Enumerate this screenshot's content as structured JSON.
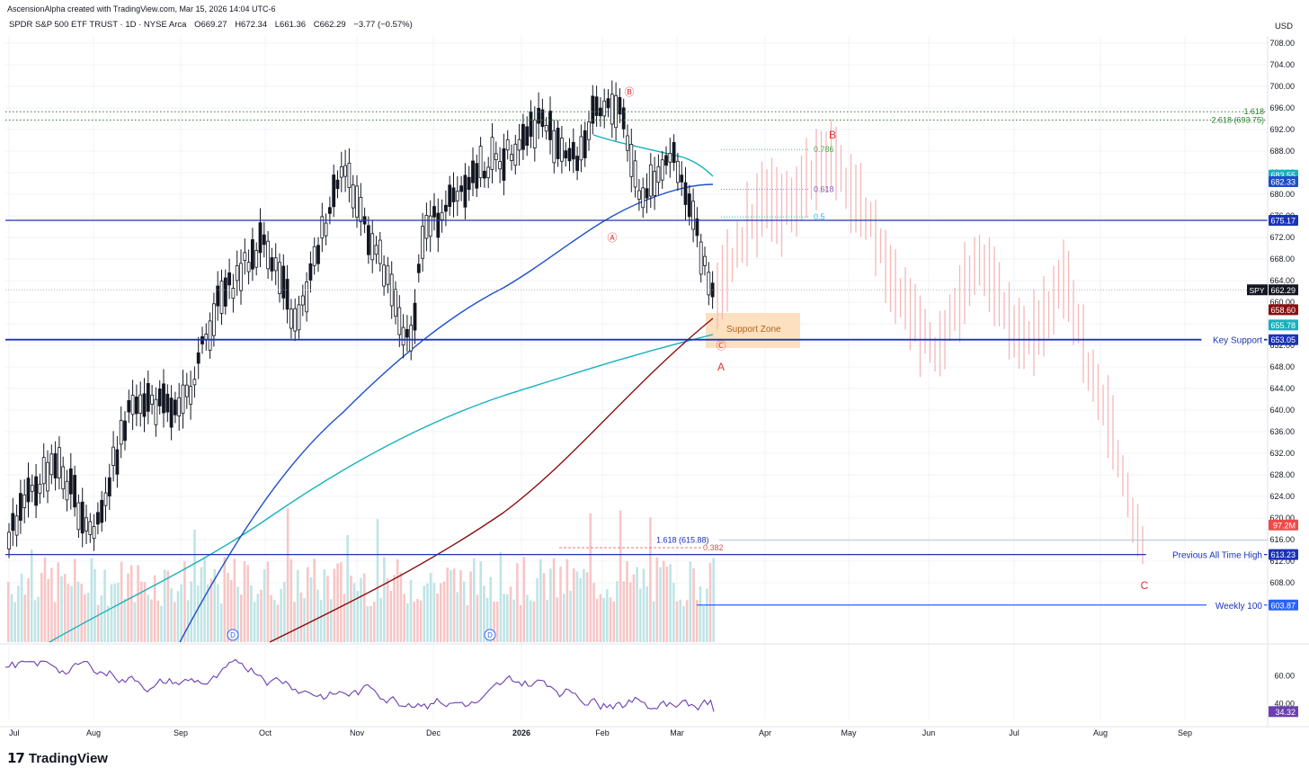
{
  "header": {
    "credit": "AscensionAlpha created with TradingView.com, Mar 15, 2026 14:04 UTC-6",
    "symbol": "SPDR S&P 500 ETF TRUST · 1D · NYSE Arca",
    "ohlc": {
      "open": "O669.27",
      "high": "H672.34",
      "low": "L661.36",
      "close": "C662.29",
      "change": "−3.77 (−0.57%)"
    },
    "currency": "USD"
  },
  "branding": {
    "name": "TradingView",
    "logo_icon": "tradingview-logo-icon"
  },
  "colors": {
    "up": "#131722",
    "down": "#131722",
    "projection": "#f5b7b7",
    "ema_blue": "#1e4fc9",
    "ema_cyan": "#16b1bd",
    "ema_red": "#8b1010",
    "level": "#1a33b8",
    "rsi": "#6b3fb0",
    "vol_up": "#bfe4e6",
    "vol_down": "#f7c6c6",
    "support_zone": "#fde0bf",
    "wave_label": "#e03434"
  },
  "chart_data": {
    "type": "candlestick",
    "price_axis": {
      "min": 604,
      "max": 709,
      "ticks": [
        608,
        612,
        616,
        620,
        624,
        628,
        632,
        636,
        640,
        644,
        648,
        652,
        656,
        660,
        664,
        668,
        672,
        676,
        680,
        684,
        688,
        692,
        696,
        700,
        704,
        708
      ]
    },
    "time_axis": [
      "Jul",
      "Aug",
      "Sep",
      "Oct",
      "Nov",
      "Dec",
      "2026",
      "Feb",
      "Mar",
      "Apr",
      "May",
      "Jun",
      "Jul",
      "Aug",
      "Sep"
    ],
    "last_price": {
      "symbol": "SPY",
      "value": "662.29"
    },
    "price_badges": [
      {
        "value": "683.55",
        "color": "#16b1bd"
      },
      {
        "value": "682.33",
        "color": "#1e4fc9"
      },
      {
        "value": "675.17",
        "color": "#1a33b8"
      },
      {
        "value": "658.60",
        "color": "#8b1010"
      },
      {
        "value": "655.78",
        "color": "#16b1bd"
      },
      {
        "value": "653.05",
        "color": "#1a33b8"
      },
      {
        "value": "97.2M",
        "color": "#f04a4a"
      },
      {
        "value": "613.23",
        "color": "#1a33b8"
      },
      {
        "value": "603.87",
        "color": "#2962ff"
      }
    ],
    "horizontal_levels": [
      {
        "label": "",
        "price": 675.17
      },
      {
        "label": "Key Support",
        "price": 653.05
      },
      {
        "label": "Previous All Time High",
        "price": 613.23
      },
      {
        "label": "Weekly 100",
        "price": 603.87
      }
    ],
    "fib_extensions": [
      {
        "label": "1.618",
        "price": 695.3
      },
      {
        "label": "2.618 (693.75)",
        "price": 693.75
      }
    ],
    "fib_retracements": [
      {
        "label": "0.786",
        "price": 688.3
      },
      {
        "label": "0.618",
        "price": 680.9
      },
      {
        "label": "0.5",
        "price": 675.8
      }
    ],
    "lower_fib": [
      {
        "label": "1.618 (615.88)",
        "price": 615.88
      },
      {
        "label": "0.382",
        "price": 614.5
      }
    ],
    "support_zone": {
      "label": "Support Zone",
      "low": 651.5,
      "high": 658.0
    },
    "wave_labels": [
      {
        "label": "Ⓑ",
        "date": "2026-02-06",
        "price": 699
      },
      {
        "label": "Ⓐ",
        "date": "2026-02-09",
        "price": 672
      },
      {
        "label": "Ⓒ",
        "date": "2026-03-13",
        "price": 652
      },
      {
        "label": "A",
        "date": "2026-03-14",
        "price": 648
      },
      {
        "label": "B",
        "date": "2026-04-20",
        "price": 691
      },
      {
        "label": "C",
        "date": "2026-08-12",
        "price": 607.5
      }
    ],
    "dividend_markers": [
      {
        "label": "D",
        "month": "Sep"
      },
      {
        "label": "D",
        "month": "Dec"
      }
    ],
    "rsi": {
      "ticks": [
        "60.00",
        "40.00"
      ],
      "last": "34.32"
    }
  }
}
